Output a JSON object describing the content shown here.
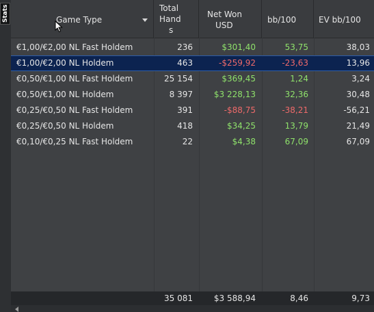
{
  "side_tab": {
    "label": "Stats"
  },
  "columns": {
    "game_type": "Game Type",
    "total_hands": [
      "Total",
      "Hand",
      "s"
    ],
    "net_won": [
      "Net Won",
      "USD"
    ],
    "bb100": "bb/100",
    "ev_bb100": "EV bb/100"
  },
  "rows": [
    {
      "game": "€1,00/€2,00 NL Fast Holdem",
      "hands": "236",
      "net": "$301,40",
      "net_sign": "pos",
      "bb": "53,75",
      "bb_sign": "pos",
      "ev": "38,03",
      "selected": false
    },
    {
      "game": "€1,00/€2,00 NL Holdem",
      "hands": "463",
      "net": "-$259,92",
      "net_sign": "neg",
      "bb": "-23,63",
      "bb_sign": "neg",
      "ev": "13,96",
      "selected": true
    },
    {
      "game": "€0,50/€1,00 NL Fast Holdem",
      "hands": "25 154",
      "net": "$369,45",
      "net_sign": "pos",
      "bb": "1,24",
      "bb_sign": "pos",
      "ev": "3,24",
      "selected": false
    },
    {
      "game": "€0,50/€1,00 NL Holdem",
      "hands": "8 397",
      "net": "$3 228,13",
      "net_sign": "pos",
      "bb": "32,36",
      "bb_sign": "pos",
      "ev": "30,48",
      "selected": false
    },
    {
      "game": "€0,25/€0,50 NL Fast Holdem",
      "hands": "391",
      "net": "-$88,75",
      "net_sign": "neg",
      "bb": "-38,21",
      "bb_sign": "neg",
      "ev": "-56,21",
      "selected": false
    },
    {
      "game": "€0,25/€0,50 NL Holdem",
      "hands": "418",
      "net": "$34,25",
      "net_sign": "pos",
      "bb": "13,79",
      "bb_sign": "pos",
      "ev": "21,49",
      "selected": false
    },
    {
      "game": "€0,10/€0,25 NL Fast Holdem",
      "hands": "22",
      "net": "$4,38",
      "net_sign": "pos",
      "bb": "67,09",
      "bb_sign": "pos",
      "ev": "67,09",
      "selected": false
    }
  ],
  "totals": {
    "hands": "35 081",
    "net": "$3 588,94",
    "bb": "8,46",
    "ev": "9,73"
  },
  "colors": {
    "positive": "#8fe26b",
    "negative": "#ef6a6a",
    "selected_row": "#0c2350"
  },
  "icons": {
    "sort": "chevron-down-icon",
    "cursor": "mouse-pointer-icon",
    "scroll_left": "arrow-left-icon"
  }
}
